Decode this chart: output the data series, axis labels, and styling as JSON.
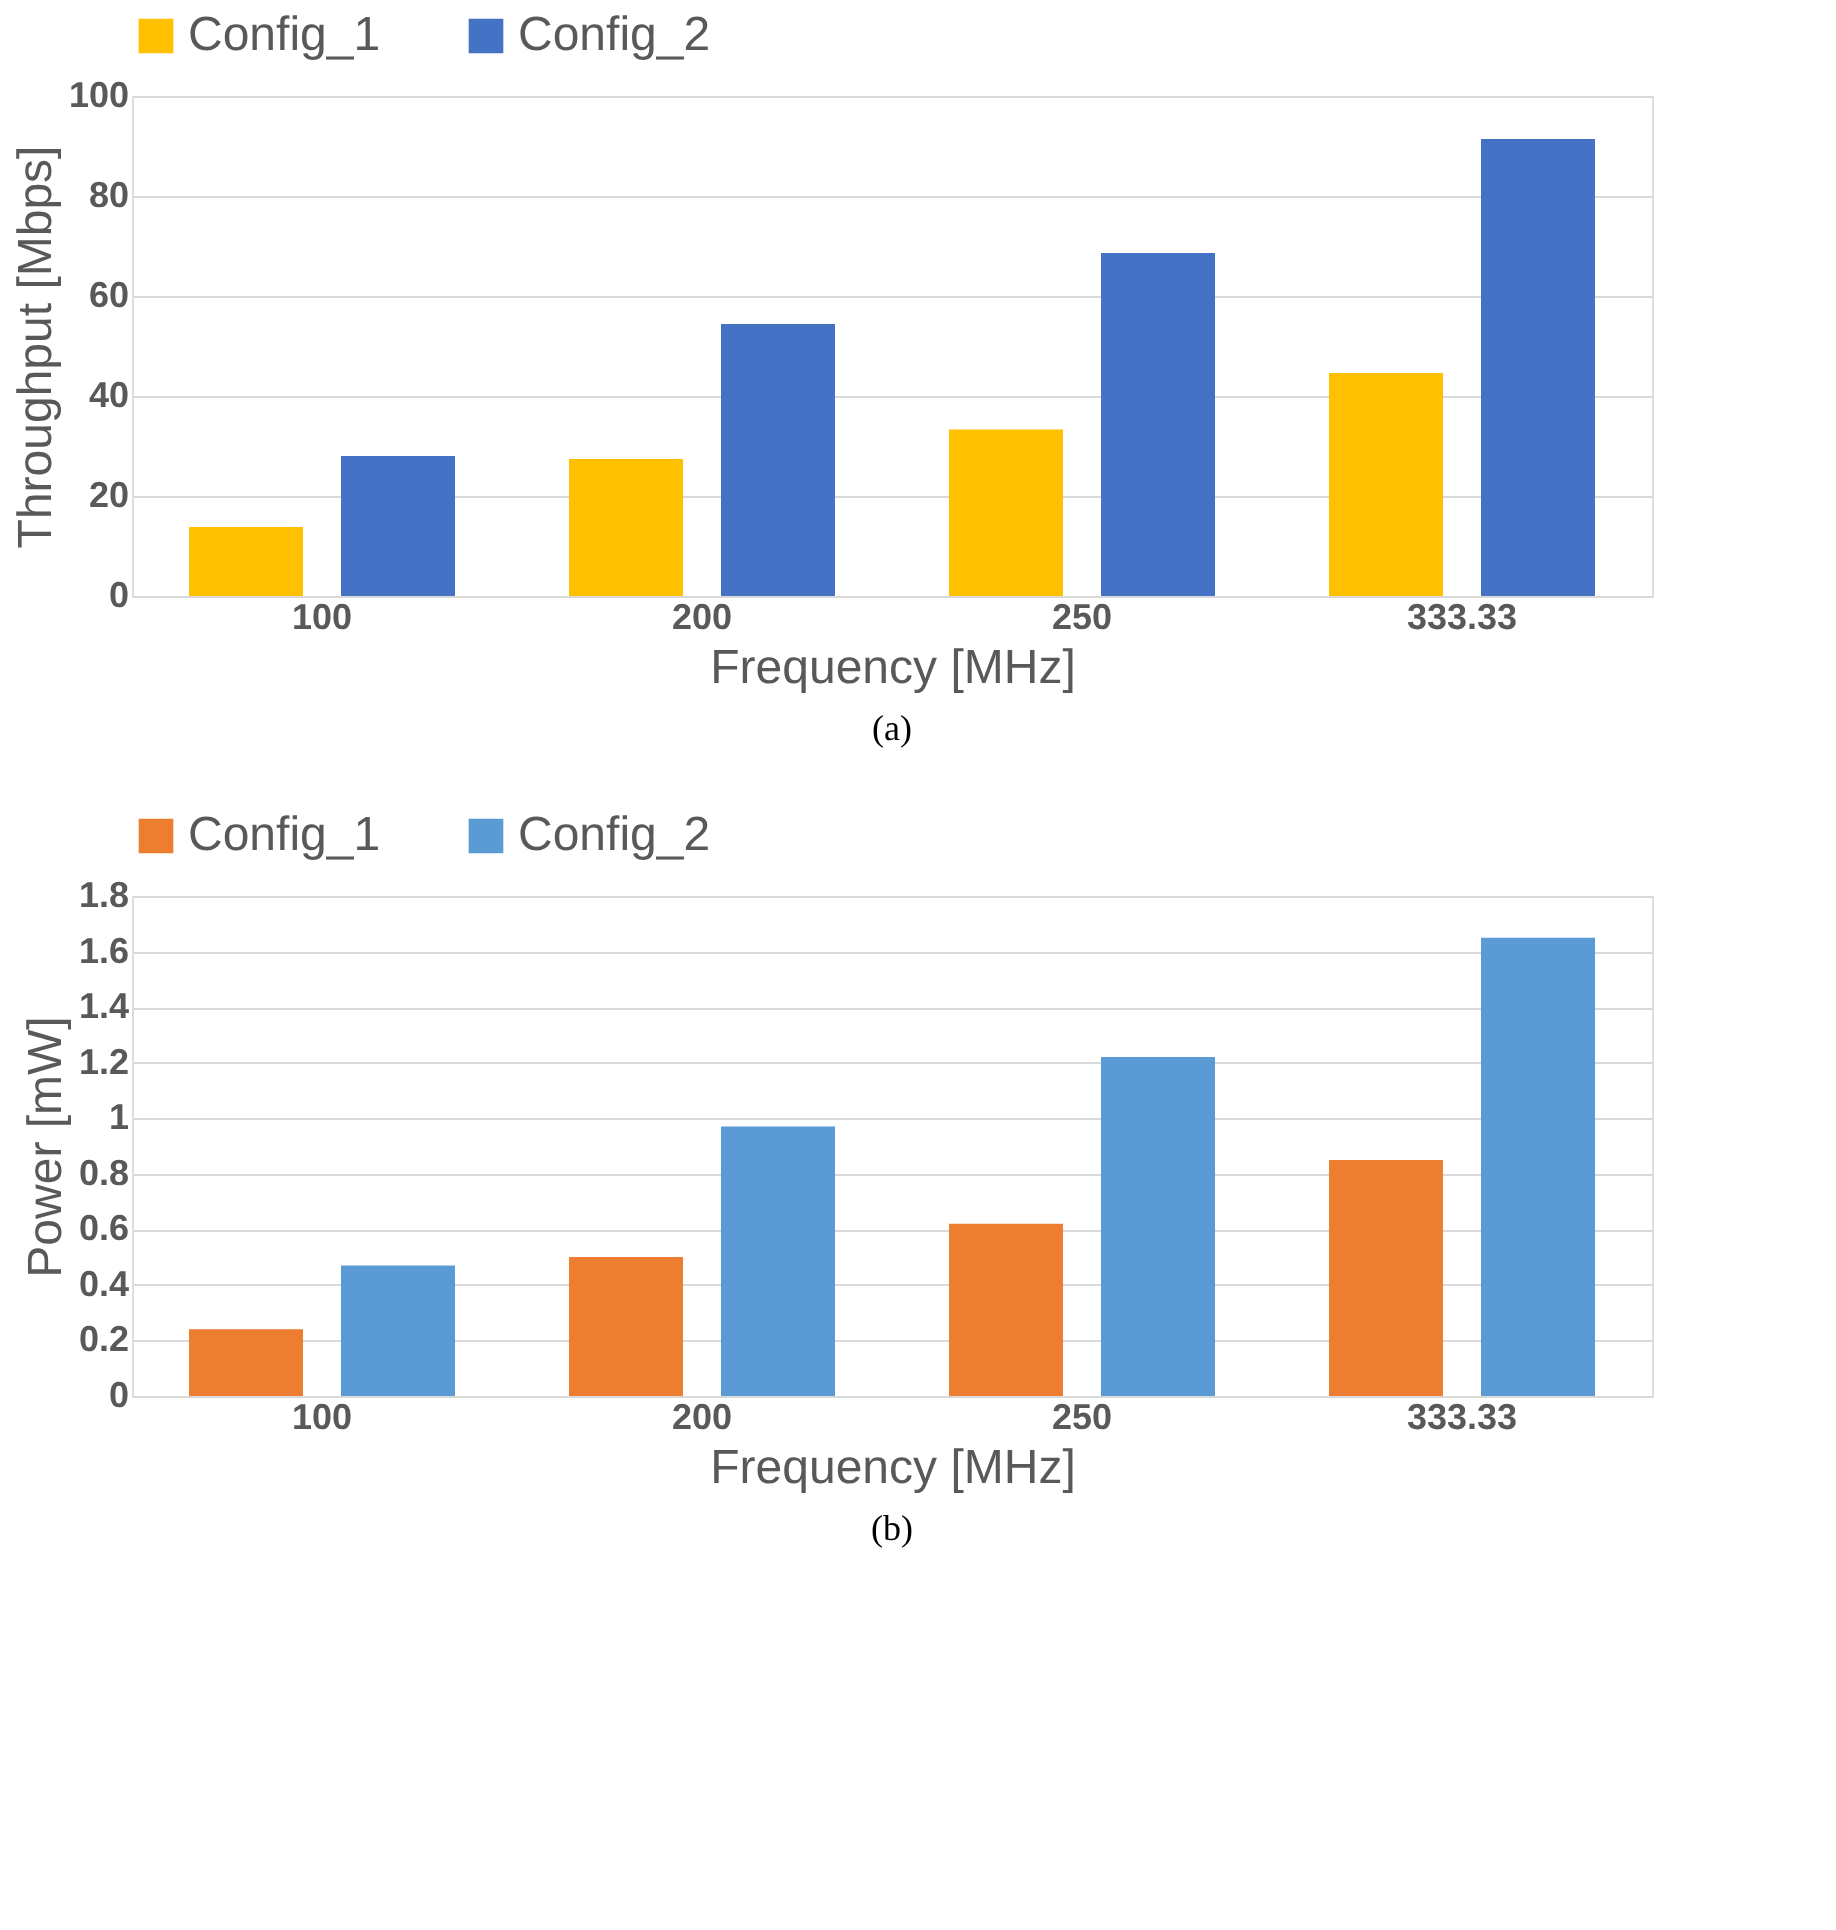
{
  "chart_data": [
    {
      "type": "bar",
      "categories": [
        "100",
        "200",
        "250",
        "333.33"
      ],
      "xlabel": "Frequency [MHz]",
      "ylabel": "Throughput [Mbps]",
      "ylim": [
        0,
        100
      ],
      "yticks": [
        0,
        20,
        40,
        60,
        80,
        100
      ],
      "grid": "y",
      "legend": "top",
      "annotations": [
        "(a)"
      ],
      "series": [
        {
          "name": "Config_1",
          "color": "#ffc000",
          "values": [
            13.8,
            27.4,
            33.3,
            44.6
          ]
        },
        {
          "name": "Config_2",
          "color": "#4472c4",
          "values": [
            28,
            54.4,
            68.6,
            91.4
          ]
        }
      ]
    },
    {
      "type": "bar",
      "categories": [
        "100",
        "200",
        "250",
        "333.33"
      ],
      "xlabel": "Frequency [MHz]",
      "ylabel": "Power [mW]",
      "ylim": [
        0,
        1.8
      ],
      "yticks": [
        0,
        0.2,
        0.4,
        0.6,
        0.8,
        1,
        1.2,
        1.4,
        1.6,
        1.8
      ],
      "grid": "y",
      "legend": "top",
      "annotations": [
        "(b)"
      ],
      "series": [
        {
          "name": "Config_1",
          "color": "#ed7d31",
          "values": [
            0.24,
            0.5,
            0.62,
            0.85
          ]
        },
        {
          "name": "Config_2",
          "color": "#5b9bd5",
          "values": [
            0.47,
            0.97,
            1.22,
            1.65
          ]
        }
      ]
    }
  ]
}
